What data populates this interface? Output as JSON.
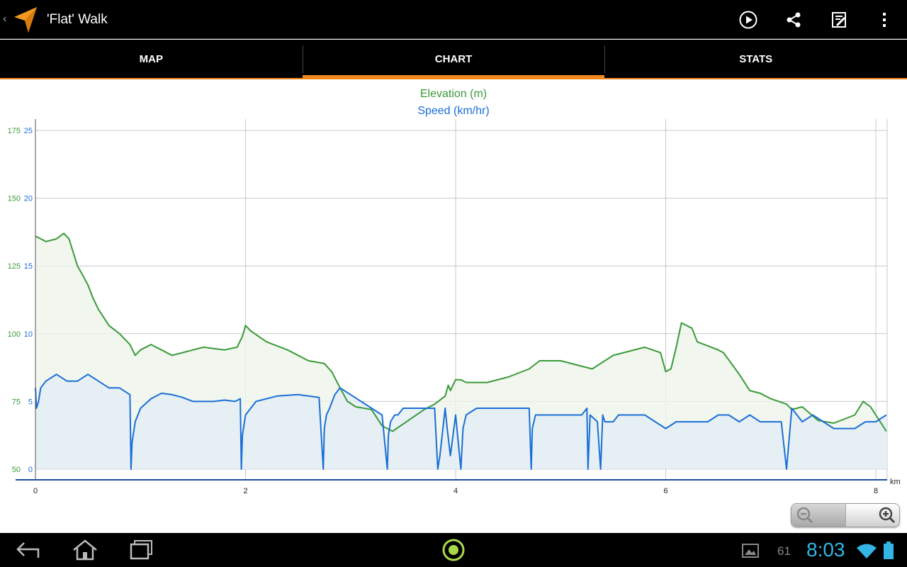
{
  "app": {
    "title": "'Flat' Walk",
    "accent_color": "#f08a1f",
    "icons": [
      "back-chevron-icon",
      "navigation-arrow-icon",
      "play-icon",
      "share-icon",
      "edit-icon",
      "overflow-menu-icon"
    ]
  },
  "tabs": [
    {
      "label": "MAP",
      "active": false
    },
    {
      "label": "CHART",
      "active": true
    },
    {
      "label": "STATS",
      "active": false
    }
  ],
  "chart_data": {
    "type": "area",
    "title": "Elevation (m)",
    "subtitle": "Speed (km/hr)",
    "x_unit_label": "km",
    "x_range": [
      0,
      8.1
    ],
    "x_ticks": [
      0,
      2,
      4,
      6,
      8
    ],
    "y_left_ticks": [
      50,
      75,
      100,
      125,
      150,
      175
    ],
    "y_left_range": [
      50,
      175
    ],
    "y_right_ticks": [
      0,
      5,
      10,
      15,
      20,
      25
    ],
    "y_right_range": [
      0,
      25
    ],
    "grid": true,
    "series": [
      {
        "axis": "elevation",
        "color": "#3a9a3a",
        "fill": "#edf4ea",
        "x": [
          0,
          0.1,
          0.2,
          0.27,
          0.32,
          0.4,
          0.43,
          0.5,
          0.55,
          0.6,
          0.7,
          0.8,
          0.9,
          0.95,
          1.0,
          1.1,
          1.2,
          1.3,
          1.4,
          1.5,
          1.6,
          1.8,
          1.92,
          1.97,
          2.0,
          2.05,
          2.2,
          2.4,
          2.6,
          2.75,
          2.82,
          2.9,
          2.97,
          3.05,
          3.2,
          3.3,
          3.4,
          3.55,
          3.7,
          3.8,
          3.9,
          3.93,
          3.95,
          4.0,
          4.05,
          4.1,
          4.3,
          4.5,
          4.7,
          4.8,
          5.0,
          5.1,
          5.3,
          5.5,
          5.8,
          5.95,
          6.0,
          6.05,
          6.1,
          6.15,
          6.25,
          6.3,
          6.5,
          6.55,
          6.7,
          6.8,
          6.9,
          7.0,
          7.15,
          7.2,
          7.3,
          7.45,
          7.6,
          7.8,
          7.88,
          7.95,
          8.1
        ],
        "values": [
          136,
          134,
          135,
          137,
          135,
          125,
          123,
          118,
          113,
          109,
          103,
          100,
          96,
          92,
          94,
          96,
          94,
          92,
          93,
          94,
          95,
          94,
          95,
          99,
          103,
          101,
          97,
          94,
          90,
          89,
          86,
          80,
          75,
          73,
          72,
          66,
          64,
          68,
          72,
          74,
          77,
          81,
          79,
          83,
          83,
          82,
          82,
          84,
          87,
          90,
          90,
          89,
          87,
          92,
          95,
          93,
          86,
          87,
          95,
          104,
          102,
          97,
          94,
          93,
          85,
          79,
          78,
          76,
          74,
          72,
          73,
          68,
          67,
          70,
          75,
          73,
          64
        ]
      },
      {
        "axis": "speed",
        "color": "#1a6fd6",
        "fill": "#e4eef4",
        "x": [
          0,
          0.01,
          0.03,
          0.05,
          0.1,
          0.2,
          0.3,
          0.4,
          0.5,
          0.6,
          0.7,
          0.8,
          0.9,
          0.91,
          0.92,
          0.95,
          1.0,
          1.1,
          1.2,
          1.3,
          1.4,
          1.5,
          1.6,
          1.7,
          1.8,
          1.9,
          1.95,
          1.96,
          1.97,
          2.0,
          2.1,
          2.3,
          2.5,
          2.7,
          2.74,
          2.75,
          2.77,
          2.8,
          2.85,
          2.9,
          3.0,
          3.1,
          3.2,
          3.3,
          3.35,
          3.36,
          3.38,
          3.42,
          3.45,
          3.5,
          3.6,
          3.7,
          3.8,
          3.83,
          3.85,
          3.9,
          3.92,
          3.95,
          4.0,
          4.05,
          4.07,
          4.1,
          4.2,
          4.4,
          4.6,
          4.7,
          4.72,
          4.73,
          4.76,
          4.8,
          5.0,
          5.2,
          5.25,
          5.26,
          5.28,
          5.35,
          5.38,
          5.4,
          5.42,
          5.5,
          5.55,
          5.6,
          5.7,
          5.8,
          5.9,
          6.0,
          6.1,
          6.2,
          6.3,
          6.4,
          6.5,
          6.6,
          6.7,
          6.8,
          6.9,
          7.0,
          7.1,
          7.15,
          7.2,
          7.3,
          7.4,
          7.5,
          7.6,
          7.7,
          7.8,
          7.9,
          8.0,
          8.1
        ],
        "values": [
          6,
          4.5,
          5,
          6,
          6.5,
          7,
          6.5,
          6.5,
          7,
          6.5,
          6,
          6,
          5.5,
          0,
          2,
          3.5,
          4.5,
          5.2,
          5.6,
          5.5,
          5.3,
          5,
          5,
          5,
          5.1,
          5,
          5.2,
          0,
          2.5,
          4,
          5,
          5.4,
          5.5,
          5.3,
          0,
          3,
          4,
          4.5,
          5.5,
          6,
          5.5,
          5,
          4.5,
          4,
          0,
          2.5,
          3.5,
          4,
          4,
          4.5,
          4.5,
          4.5,
          4.5,
          0,
          1,
          4.5,
          3,
          1,
          4,
          0,
          3,
          4,
          4.5,
          4.5,
          4.5,
          4.5,
          0,
          3,
          4,
          4,
          4,
          4,
          4.5,
          0,
          4,
          3.5,
          0,
          4,
          3.5,
          3.5,
          4,
          4,
          4,
          4,
          3.5,
          3,
          3.5,
          3.5,
          3.5,
          3.5,
          4,
          4,
          3.5,
          4,
          3.5,
          3.5,
          3.5,
          0,
          4.5,
          3.5,
          4,
          3.5,
          3,
          3,
          3,
          3.5,
          3.5,
          4
        ]
      }
    ]
  },
  "zoom": {
    "icons": [
      "zoom-out-icon",
      "zoom-in-icon"
    ]
  },
  "system_bar": {
    "clock": "8:03",
    "notification_count": "61",
    "icons": [
      "back-icon",
      "home-icon",
      "recent-apps-icon",
      "app-status-icon",
      "gallery-icon",
      "wifi-icon",
      "battery-icon"
    ]
  }
}
